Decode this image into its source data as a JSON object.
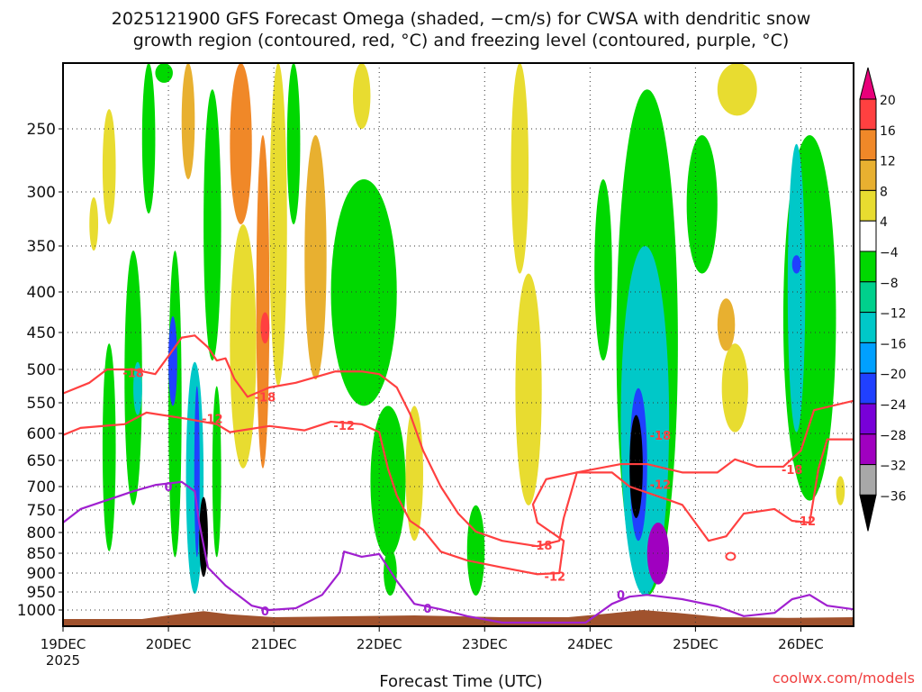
{
  "title_line1": "2025121900 GFS Forecast Omega (shaded, −cm/s) for CWSA with dendritic snow",
  "title_line2": "growth region (contoured, red, °C) and freezing level (contoured, purple, °C)",
  "credit": "coolwx.com/models",
  "chart_data": {
    "type": "heatmap",
    "title": "2025121900 GFS Forecast Omega (shaded, −cm/s) for CWSA with dendritic snow growth region (contoured, red, °C) and freezing level (contoured, purple, °C)",
    "xlabel": "Forecast Time (UTC)",
    "ylabel": "",
    "x_units": "hours after 19DEC 00Z",
    "xlim": [
      0,
      180
    ],
    "ylim_hPa": [
      1045,
      200
    ],
    "x_ticks": [
      {
        "hour": 0,
        "label": "19DEC",
        "sublabel": "2025"
      },
      {
        "hour": 24,
        "label": "20DEC"
      },
      {
        "hour": 48,
        "label": "21DEC"
      },
      {
        "hour": 72,
        "label": "22DEC"
      },
      {
        "hour": 96,
        "label": "23DEC"
      },
      {
        "hour": 120,
        "label": "24DEC"
      },
      {
        "hour": 144,
        "label": "25DEC"
      },
      {
        "hour": 168,
        "label": "26DEC"
      }
    ],
    "y_ticks": [
      250,
      300,
      350,
      400,
      450,
      500,
      550,
      600,
      650,
      700,
      750,
      800,
      850,
      900,
      950,
      1000
    ],
    "grid": true,
    "colorbar": {
      "labels": [
        "20",
        "16",
        "12",
        "8",
        "4",
        "−4",
        "−8",
        "−12",
        "−16",
        "−20",
        "−24",
        "−28",
        "−32",
        "−36"
      ],
      "over_color": "#e8007a",
      "under_color": "#000000",
      "colors": [
        "#ff4040",
        "#f08828",
        "#e8b030",
        "#e8dc30",
        "#ffffff",
        "#00d800",
        "#00d08c",
        "#00c8c8",
        "#00a0ff",
        "#2040ff",
        "#7800d8",
        "#a000c0",
        "#a8a8a8"
      ],
      "bounds": [
        20,
        16,
        12,
        8,
        4,
        -4,
        -8,
        -12,
        -16,
        -20,
        -24,
        -28,
        -32,
        -36
      ]
    },
    "omega_regions": [
      {
        "t": [
          6,
          8
        ],
        "p": [
          305,
          355
        ],
        "v": 6
      },
      {
        "t": [
          9,
          12
        ],
        "p": [
          235,
          330
        ],
        "v": 6
      },
      {
        "t": [
          9,
          12
        ],
        "p": [
          465,
          845
        ],
        "v": -6
      },
      {
        "t": [
          14,
          18
        ],
        "p": [
          355,
          740
        ],
        "v": -6
      },
      {
        "t": [
          16,
          18
        ],
        "p": [
          490,
          570
        ],
        "v": -14
      },
      {
        "t": [
          18,
          21
        ],
        "p": [
          200,
          320
        ],
        "v": -6
      },
      {
        "t": [
          21,
          25
        ],
        "p": [
          200,
          215
        ],
        "v": -6
      },
      {
        "t": [
          24,
          27
        ],
        "p": [
          355,
          860
        ],
        "v": -6
      },
      {
        "t": [
          24,
          26
        ],
        "p": [
          430,
          555
        ],
        "v": -22
      },
      {
        "t": [
          27,
          30
        ],
        "p": [
          200,
          290
        ],
        "v": 10
      },
      {
        "t": [
          28,
          32
        ],
        "p": [
          490,
          955
        ],
        "v": -14
      },
      {
        "t": [
          30,
          31
        ],
        "p": [
          525,
          860
        ],
        "v": -22
      },
      {
        "t": [
          31,
          33
        ],
        "p": [
          722,
          910
        ],
        "v": -38
      },
      {
        "t": [
          32,
          36
        ],
        "p": [
          220,
          488
        ],
        "v": -6
      },
      {
        "t": [
          34,
          36
        ],
        "p": [
          525,
          860
        ],
        "v": -6
      },
      {
        "t": [
          38,
          43
        ],
        "p": [
          200,
          330
        ],
        "v": 12
      },
      {
        "t": [
          38,
          44
        ],
        "p": [
          330,
          665
        ],
        "v": 6
      },
      {
        "t": [
          44,
          47
        ],
        "p": [
          255,
          665
        ],
        "v": 14
      },
      {
        "t": [
          45,
          47
        ],
        "p": [
          425,
          465
        ],
        "v": 18
      },
      {
        "t": [
          47,
          51
        ],
        "p": [
          200,
          525
        ],
        "v": 6
      },
      {
        "t": [
          51,
          54
        ],
        "p": [
          200,
          330
        ],
        "v": -6
      },
      {
        "t": [
          55,
          60
        ],
        "p": [
          255,
          515
        ],
        "v": 10
      },
      {
        "t": [
          61,
          76
        ],
        "p": [
          290,
          555
        ],
        "v": -6
      },
      {
        "t": [
          66,
          70
        ],
        "p": [
          200,
          250
        ],
        "v": 6
      },
      {
        "t": [
          70,
          78
        ],
        "p": [
          555,
          860
        ],
        "v": -6
      },
      {
        "t": [
          73,
          76
        ],
        "p": [
          840,
          960
        ],
        "v": -6
      },
      {
        "t": [
          78,
          82
        ],
        "p": [
          555,
          820
        ],
        "v": 6
      },
      {
        "t": [
          102,
          106
        ],
        "p": [
          200,
          380
        ],
        "v": 6
      },
      {
        "t": [
          103,
          109
        ],
        "p": [
          380,
          740
        ],
        "v": 6
      },
      {
        "t": [
          92,
          96
        ],
        "p": [
          740,
          960
        ],
        "v": -6
      },
      {
        "t": [
          121,
          125
        ],
        "p": [
          290,
          488
        ],
        "v": -6
      },
      {
        "t": [
          126,
          140
        ],
        "p": [
          220,
          960
        ],
        "v": -6
      },
      {
        "t": [
          127,
          138
        ],
        "p": [
          350,
          960
        ],
        "v": -14
      },
      {
        "t": [
          129,
          133
        ],
        "p": [
          528,
          820
        ],
        "v": -22
      },
      {
        "t": [
          129,
          132
        ],
        "p": [
          570,
          768
        ],
        "v": -38
      },
      {
        "t": [
          133,
          138
        ],
        "p": [
          778,
          930
        ],
        "v": -30
      },
      {
        "t": [
          149,
          158
        ],
        "p": [
          200,
          240
        ],
        "v": 6
      },
      {
        "t": [
          142,
          149
        ],
        "p": [
          255,
          380
        ],
        "v": -6
      },
      {
        "t": [
          150,
          156
        ],
        "p": [
          465,
          598
        ],
        "v": 6
      },
      {
        "t": [
          149,
          153
        ],
        "p": [
          408,
          475
        ],
        "v": 10
      },
      {
        "t": [
          164,
          176
        ],
        "p": [
          255,
          730
        ],
        "v": -6
      },
      {
        "t": [
          165,
          169
        ],
        "p": [
          262,
          598
        ],
        "v": -14
      },
      {
        "t": [
          166,
          168
        ],
        "p": [
          360,
          380
        ],
        "v": -22
      },
      {
        "t": [
          176,
          178
        ],
        "p": [
          680,
          740
        ],
        "v": 6
      }
    ],
    "contours": [
      {
        "name": "-18C",
        "color": "#ff4040",
        "points": [
          [
            0,
            536
          ],
          [
            6,
            520
          ],
          [
            10,
            500
          ],
          [
            16,
            500
          ],
          [
            21,
            507
          ],
          [
            24,
            482
          ],
          [
            27,
            457
          ],
          [
            30,
            454
          ],
          [
            33,
            470
          ],
          [
            35,
            488
          ],
          [
            37,
            485
          ],
          [
            39,
            514
          ],
          [
            42,
            541
          ],
          [
            47,
            527
          ],
          [
            53,
            520
          ],
          [
            62,
            503
          ],
          [
            68,
            503
          ],
          [
            72,
            507
          ],
          [
            76,
            527
          ],
          [
            79,
            568
          ],
          [
            82,
            632
          ],
          [
            86,
            700
          ],
          [
            90,
            758
          ],
          [
            94,
            798
          ],
          [
            100,
            820
          ],
          [
            108,
            833
          ],
          [
            113,
            820
          ],
          [
            114,
            768
          ],
          [
            117,
            673
          ],
          [
            127,
            657
          ],
          [
            133,
            657
          ],
          [
            141,
            673
          ],
          [
            149,
            673
          ],
          [
            153,
            648
          ],
          [
            158,
            662
          ],
          [
            164,
            662
          ],
          [
            168,
            632
          ],
          [
            171,
            562
          ],
          [
            180,
            547
          ]
        ]
      },
      {
        "name": "-12C",
        "color": "#ff4040",
        "points": [
          [
            0,
            603
          ],
          [
            4,
            591
          ],
          [
            14,
            585
          ],
          [
            19,
            566
          ],
          [
            28,
            576
          ],
          [
            35,
            585
          ],
          [
            38,
            598
          ],
          [
            47,
            588
          ],
          [
            55,
            595
          ],
          [
            61,
            581
          ],
          [
            68,
            585
          ],
          [
            72,
            598
          ],
          [
            74,
            666
          ],
          [
            76,
            719
          ],
          [
            79,
            774
          ],
          [
            82,
            794
          ],
          [
            84,
            820
          ],
          [
            86,
            846
          ],
          [
            92,
            868
          ],
          [
            100,
            886
          ],
          [
            108,
            903
          ],
          [
            113,
            900
          ],
          [
            114,
            820
          ],
          [
            108,
            778
          ],
          [
            107,
            738
          ],
          [
            110,
            686
          ],
          [
            117,
            673
          ],
          [
            125,
            673
          ],
          [
            129,
            700
          ],
          [
            138,
            729
          ],
          [
            141,
            739
          ],
          [
            147,
            820
          ],
          [
            151,
            809
          ],
          [
            155,
            758
          ],
          [
            162,
            748
          ],
          [
            166,
            774
          ],
          [
            170,
            778
          ],
          [
            172,
            666
          ],
          [
            174,
            611
          ],
          [
            180,
            611
          ]
        ]
      },
      {
        "name": "0C",
        "color": "#a020d0",
        "points": [
          [
            0,
            778
          ],
          [
            4,
            748
          ],
          [
            10,
            729
          ],
          [
            16,
            710
          ],
          [
            21,
            697
          ],
          [
            27,
            691
          ],
          [
            30,
            710
          ],
          [
            31,
            778
          ],
          [
            33,
            886
          ],
          [
            37,
            933
          ],
          [
            43,
            988
          ],
          [
            47,
            1000
          ],
          [
            53,
            995
          ],
          [
            59,
            958
          ],
          [
            63,
            898
          ],
          [
            64,
            846
          ],
          [
            68,
            859
          ],
          [
            72,
            852
          ],
          [
            76,
            921
          ],
          [
            80,
            983
          ],
          [
            86,
            998
          ],
          [
            92,
            1017
          ],
          [
            100,
            1035
          ],
          [
            119,
            1035
          ],
          [
            125,
            983
          ],
          [
            129,
            963
          ],
          [
            133,
            958
          ],
          [
            141,
            970
          ],
          [
            149,
            990
          ],
          [
            155,
            1017
          ],
          [
            162,
            1008
          ],
          [
            166,
            970
          ],
          [
            170,
            958
          ],
          [
            174,
            988
          ],
          [
            180,
            998
          ]
        ]
      }
    ],
    "contour_labels": [
      {
        "t": 16,
        "p": 505,
        "text": "-18",
        "color": "#ff4040"
      },
      {
        "t": 46,
        "p": 541,
        "text": "-18",
        "color": "#ff4040"
      },
      {
        "t": 34,
        "p": 576,
        "text": "-12",
        "color": "#ff4040"
      },
      {
        "t": 64,
        "p": 587,
        "text": "-12",
        "color": "#ff4040"
      },
      {
        "t": 109,
        "p": 830,
        "text": "-18",
        "color": "#ff4040"
      },
      {
        "t": 112,
        "p": 908,
        "text": "-12",
        "color": "#ff4040"
      },
      {
        "t": 136,
        "p": 603,
        "text": "-18",
        "color": "#ff4040"
      },
      {
        "t": 136,
        "p": 696,
        "text": "-12",
        "color": "#ff4040"
      },
      {
        "t": 166,
        "p": 667,
        "text": "-18",
        "color": "#ff4040"
      },
      {
        "t": 169,
        "p": 774,
        "text": "-12",
        "color": "#ff4040"
      },
      {
        "t": 24,
        "p": 700,
        "text": "0",
        "color": "#a020d0"
      },
      {
        "t": 46,
        "p": 1002,
        "text": "0",
        "color": "#a020d0"
      },
      {
        "t": 83,
        "p": 995,
        "text": "0",
        "color": "#a020d0"
      },
      {
        "t": 127,
        "p": 958,
        "text": "0",
        "color": "#a020d0"
      }
    ],
    "terrain_color": "#a0522d",
    "terrain": [
      [
        0,
        1025
      ],
      [
        18,
        1025
      ],
      [
        24,
        1015
      ],
      [
        32,
        1003
      ],
      [
        38,
        1012
      ],
      [
        48,
        1020
      ],
      [
        60,
        1018
      ],
      [
        80,
        1015
      ],
      [
        100,
        1020
      ],
      [
        115,
        1020
      ],
      [
        124,
        1010
      ],
      [
        132,
        1000
      ],
      [
        140,
        1008
      ],
      [
        150,
        1020
      ],
      [
        165,
        1022
      ],
      [
        180,
        1020
      ]
    ]
  }
}
